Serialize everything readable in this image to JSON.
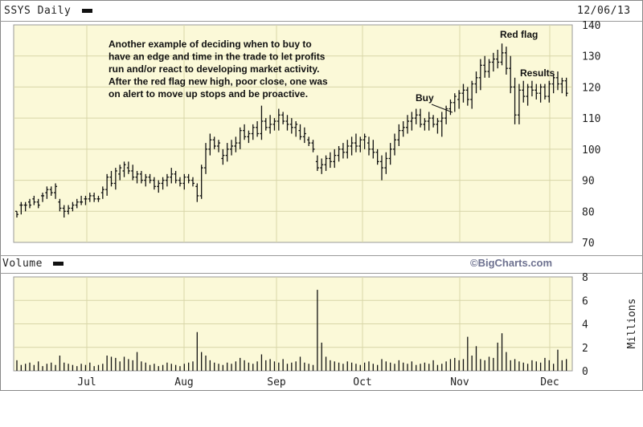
{
  "header": {
    "title": "SSYS Daily",
    "date": "12/06/13"
  },
  "volume_header": {
    "title": "Volume",
    "watermark": "©BigCharts.com",
    "unit_label": "Millions"
  },
  "annotations": {
    "note_lines": [
      "Another example of deciding when to buy to",
      "have an edge and time in the trade to let profits",
      "run and/or react to developing market activity.",
      "After the red flag new high, poor close, one was",
      "on alert to move up stops and be proactive."
    ],
    "buy": "Buy",
    "red_flag": "Red flag",
    "results": "Results"
  },
  "chart_data": [
    {
      "type": "ohlc",
      "title": "SSYS Daily",
      "grid": true,
      "ylim": [
        70,
        140
      ],
      "yticks": [
        70,
        80,
        90,
        100,
        110,
        120,
        130,
        140
      ],
      "xticks": [
        "Jul",
        "Aug",
        "Sep",
        "Oct",
        "Nov",
        "Dec"
      ],
      "colors": {
        "background": "#fbf9d8",
        "bars": "#111111",
        "grid": "#d8d6a8"
      },
      "bars": [
        [
          80,
          78,
          80,
          79
        ],
        [
          82,
          79,
          83,
          82
        ],
        [
          82,
          80,
          83,
          82
        ],
        [
          83,
          81,
          84,
          82
        ],
        [
          84,
          82,
          85,
          83
        ],
        [
          83,
          81,
          84,
          82
        ],
        [
          85,
          83,
          86,
          85
        ],
        [
          86,
          84,
          88,
          87
        ],
        [
          87,
          85,
          88,
          86
        ],
        [
          86,
          84,
          89,
          88
        ],
        [
          83,
          80,
          84,
          81
        ],
        [
          81,
          78,
          82,
          80
        ],
        [
          80,
          79,
          82,
          81
        ],
        [
          81,
          80,
          83,
          82
        ],
        [
          82,
          81,
          84,
          83
        ],
        [
          83,
          82,
          85,
          83
        ],
        [
          84,
          82,
          85,
          84
        ],
        [
          84,
          83,
          86,
          85
        ],
        [
          85,
          83,
          86,
          84
        ],
        [
          84,
          83,
          85,
          84
        ],
        [
          86,
          84,
          88,
          87
        ],
        [
          87,
          85,
          92,
          91
        ],
        [
          91,
          88,
          93,
          89
        ],
        [
          89,
          87,
          94,
          93
        ],
        [
          92,
          90,
          95,
          94
        ],
        [
          93,
          91,
          96,
          95
        ],
        [
          94,
          92,
          96,
          93
        ],
        [
          93,
          90,
          95,
          91
        ],
        [
          91,
          89,
          93,
          92
        ],
        [
          92,
          89,
          93,
          90
        ],
        [
          90,
          88,
          92,
          91
        ],
        [
          91,
          89,
          92,
          90
        ],
        [
          90,
          87,
          91,
          88
        ],
        [
          88,
          86,
          90,
          89
        ],
        [
          89,
          87,
          91,
          90
        ],
        [
          90,
          88,
          92,
          91
        ],
        [
          91,
          89,
          94,
          92
        ],
        [
          92,
          89,
          93,
          90
        ],
        [
          90,
          88,
          91,
          89
        ],
        [
          89,
          87,
          92,
          91
        ],
        [
          91,
          89,
          92,
          90
        ],
        [
          90,
          88,
          91,
          89
        ],
        [
          88,
          83,
          89,
          85
        ],
        [
          85,
          84,
          95,
          94
        ],
        [
          94,
          92,
          102,
          100
        ],
        [
          100,
          98,
          105,
          103
        ],
        [
          103,
          100,
          104,
          101
        ],
        [
          101,
          99,
          103,
          102
        ],
        [
          97,
          95,
          100,
          98
        ],
        [
          98,
          96,
          102,
          100
        ],
        [
          100,
          98,
          103,
          101
        ],
        [
          101,
          99,
          104,
          102
        ],
        [
          102,
          100,
          107,
          106
        ],
        [
          106,
          103,
          108,
          104
        ],
        [
          104,
          102,
          106,
          105
        ],
        [
          105,
          103,
          108,
          107
        ],
        [
          107,
          104,
          109,
          105
        ],
        [
          105,
          103,
          114,
          109
        ],
        [
          109,
          106,
          110,
          107
        ],
        [
          107,
          105,
          111,
          108
        ],
        [
          108,
          106,
          110,
          109
        ],
        [
          109,
          106,
          113,
          111
        ],
        [
          111,
          108,
          112,
          109
        ],
        [
          109,
          106,
          111,
          108
        ],
        [
          108,
          105,
          110,
          107
        ],
        [
          107,
          104,
          109,
          108
        ],
        [
          106,
          103,
          108,
          104
        ],
        [
          104,
          102,
          107,
          105
        ],
        [
          103,
          101,
          104,
          102
        ],
        [
          102,
          99,
          103,
          100
        ],
        [
          96,
          93,
          98,
          94
        ],
        [
          94,
          92,
          97,
          95
        ],
        [
          95,
          93,
          98,
          97
        ],
        [
          97,
          94,
          99,
          96
        ],
        [
          96,
          94,
          100,
          98
        ],
        [
          98,
          96,
          101,
          100
        ],
        [
          100,
          97,
          102,
          99
        ],
        [
          99,
          97,
          103,
          101
        ],
        [
          101,
          98,
          104,
          102
        ],
        [
          102,
          99,
          105,
          101
        ],
        [
          101,
          99,
          104,
          103
        ],
        [
          103,
          100,
          105,
          104
        ],
        [
          102,
          98,
          104,
          100
        ],
        [
          100,
          97,
          103,
          99
        ],
        [
          99,
          95,
          100,
          96
        ],
        [
          96,
          90,
          98,
          94
        ],
        [
          94,
          92,
          99,
          97
        ],
        [
          97,
          95,
          102,
          100
        ],
        [
          100,
          98,
          105,
          103
        ],
        [
          103,
          101,
          108,
          106
        ],
        [
          106,
          104,
          109,
          107
        ],
        [
          107,
          105,
          111,
          109
        ],
        [
          109,
          106,
          112,
          110
        ],
        [
          110,
          108,
          113,
          111
        ],
        [
          111,
          107,
          113,
          108
        ],
        [
          108,
          106,
          110,
          109
        ],
        [
          109,
          106,
          112,
          110
        ],
        [
          110,
          107,
          111,
          108
        ],
        [
          108,
          105,
          110,
          109
        ],
        [
          109,
          104,
          112,
          110
        ],
        [
          110,
          108,
          114,
          113
        ],
        [
          113,
          111,
          116,
          115
        ],
        [
          115,
          112,
          118,
          117
        ],
        [
          116,
          113,
          119,
          118
        ],
        [
          118,
          115,
          121,
          119
        ],
        [
          119,
          114,
          120,
          116
        ],
        [
          116,
          113,
          122,
          121
        ],
        [
          121,
          118,
          125,
          123
        ],
        [
          123,
          119,
          129,
          127
        ],
        [
          127,
          123,
          130,
          125
        ],
        [
          125,
          123,
          129,
          128
        ],
        [
          128,
          125,
          131,
          129
        ],
        [
          129,
          126,
          132,
          128
        ],
        [
          128,
          127,
          134,
          131
        ],
        [
          131,
          124,
          133,
          126
        ],
        [
          126,
          118,
          130,
          120
        ],
        [
          120,
          108,
          123,
          111
        ],
        [
          111,
          108,
          121,
          119
        ],
        [
          119,
          115,
          122,
          117
        ],
        [
          117,
          114,
          121,
          120
        ],
        [
          120,
          117,
          122,
          119
        ],
        [
          119,
          116,
          121,
          118
        ],
        [
          118,
          115,
          121,
          120
        ],
        [
          120,
          116,
          121,
          117
        ],
        [
          117,
          115,
          122,
          121
        ],
        [
          121,
          118,
          124,
          123
        ],
        [
          123,
          119,
          125,
          121
        ],
        [
          121,
          118,
          123,
          122
        ],
        [
          122,
          117,
          123,
          118
        ]
      ]
    },
    {
      "type": "bar",
      "title": "Volume",
      "ylabel": "Millions",
      "ylim": [
        0,
        8
      ],
      "yticks": [
        0,
        2,
        4,
        6,
        8
      ],
      "xticks": [
        "Jul",
        "Aug",
        "Sep",
        "Oct",
        "Nov",
        "Dec"
      ],
      "values": [
        0.9,
        0.5,
        0.6,
        0.7,
        0.5,
        0.8,
        0.4,
        0.6,
        0.7,
        0.5,
        1.3,
        0.7,
        0.6,
        0.5,
        0.4,
        0.6,
        0.5,
        0.7,
        0.4,
        0.5,
        0.6,
        1.3,
        1.2,
        1.1,
        0.8,
        1.2,
        1.0,
        0.9,
        1.6,
        0.8,
        0.7,
        0.5,
        0.6,
        0.4,
        0.5,
        0.7,
        0.6,
        0.5,
        0.4,
        0.6,
        0.7,
        0.8,
        3.3,
        1.6,
        1.3,
        0.9,
        0.7,
        0.6,
        0.5,
        0.7,
        0.6,
        0.8,
        1.1,
        0.9,
        0.7,
        0.6,
        0.8,
        1.4,
        0.9,
        1.0,
        0.8,
        0.7,
        1.0,
        0.6,
        0.7,
        0.8,
        1.2,
        0.7,
        0.6,
        0.5,
        6.9,
        2.4,
        1.2,
        0.9,
        0.8,
        0.7,
        0.6,
        0.8,
        0.7,
        0.6,
        0.5,
        0.7,
        0.8,
        0.6,
        0.5,
        1.0,
        0.8,
        0.7,
        0.6,
        0.9,
        0.7,
        0.6,
        0.8,
        0.5,
        0.6,
        0.7,
        0.6,
        0.9,
        0.5,
        0.6,
        0.8,
        1.0,
        1.1,
        0.9,
        1.0,
        2.9,
        1.3,
        2.1,
        1.0,
        0.9,
        1.2,
        1.1,
        2.4,
        3.2,
        1.6,
        0.9,
        1.0,
        0.8,
        0.7,
        0.6,
        0.9,
        0.8,
        0.7,
        1.1,
        0.9,
        0.6,
        1.8,
        0.9,
        1.0
      ]
    }
  ]
}
